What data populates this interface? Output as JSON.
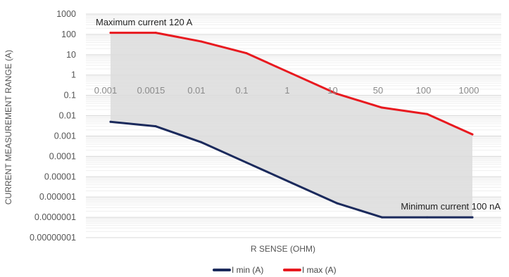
{
  "chart_data": {
    "type": "area",
    "x_categories": [
      "0.001",
      "0.0015",
      "0.01",
      "0.1",
      "1",
      "10",
      "50",
      "100",
      "1000"
    ],
    "y_tick_labels": [
      "1000",
      "100",
      "10",
      "1",
      "0.1",
      "0.01",
      "0.001",
      "0.0001",
      "0.00001",
      "0.000001",
      "0.0000001",
      "0.00000001"
    ],
    "ylim": [
      1e-08,
      1000
    ],
    "y_scale": "log",
    "xlabel": "R SENSE (OHM)",
    "ylabel": "CURRENT MEASUREMENT RANGE (A)",
    "grid": true,
    "legend_position": "bottom",
    "series": [
      {
        "name": "I min (A)",
        "color": "#1b2a5c",
        "values": [
          0.005,
          0.003,
          0.0005,
          5e-05,
          5e-06,
          5e-07,
          1e-07,
          1e-07,
          1e-07
        ]
      },
      {
        "name": "I max (A)",
        "color": "#e8191f",
        "values": [
          120,
          120,
          45,
          12,
          1.2,
          0.12,
          0.025,
          0.012,
          0.0012
        ]
      }
    ],
    "fill_between_color": "#dcdcdc",
    "annotations": {
      "max": "Maximum current 120 A",
      "min": "Minimum current 100 nA"
    }
  }
}
